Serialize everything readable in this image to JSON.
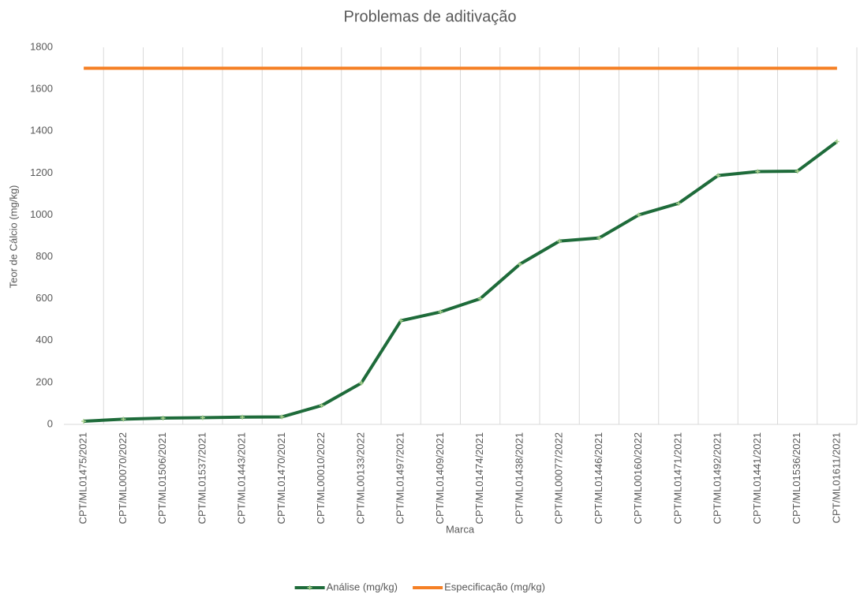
{
  "chart_data": {
    "type": "line",
    "title": "Problemas de aditivação",
    "x_label": "Marca",
    "y_label": "Teor de Cálcio (mg/kg)",
    "categories": [
      "CPT/ML01475/2021",
      "CPT/ML00070/2022",
      "CPT/ML01506/2021",
      "CPT/ML01537/2021",
      "CPT/ML01443/2021",
      "CPT/ML01470/2021",
      "CPT/ML00010/2022",
      "CPT/ML00133/2022",
      "CPT/ML01497/2021",
      "CPT/ML01409/2021",
      "CPT/ML01474/2021",
      "CPT/ML01438/2021",
      "CPT/ML00077/2022",
      "CPT/ML01446/2021",
      "CPT/ML00160/2022",
      "CPT/ML01471/2021",
      "CPT/ML01492/2021",
      "CPT/ML01441/2021",
      "CPT/ML01536/2021",
      "CPT/ML01611/2021"
    ],
    "series": [
      {
        "name": "Análise (mg/kg)",
        "color": "#1e6b3a",
        "marker": true,
        "values": [
          15,
          25,
          30,
          32,
          35,
          36,
          90,
          197,
          495,
          537,
          600,
          765,
          875,
          890,
          1000,
          1055,
          1188,
          1207,
          1209,
          1350
        ]
      },
      {
        "name": "Especificação (mg/kg)",
        "color": "#f58025",
        "marker": false,
        "values": [
          1700,
          1700,
          1700,
          1700,
          1700,
          1700,
          1700,
          1700,
          1700,
          1700,
          1700,
          1700,
          1700,
          1700,
          1700,
          1700,
          1700,
          1700,
          1700,
          1700
        ]
      }
    ],
    "ylim": [
      0,
      1800
    ],
    "yticks": [
      0,
      200,
      400,
      600,
      800,
      1000,
      1200,
      1400,
      1600,
      1800
    ],
    "grid": "x",
    "legend": "bottom"
  }
}
